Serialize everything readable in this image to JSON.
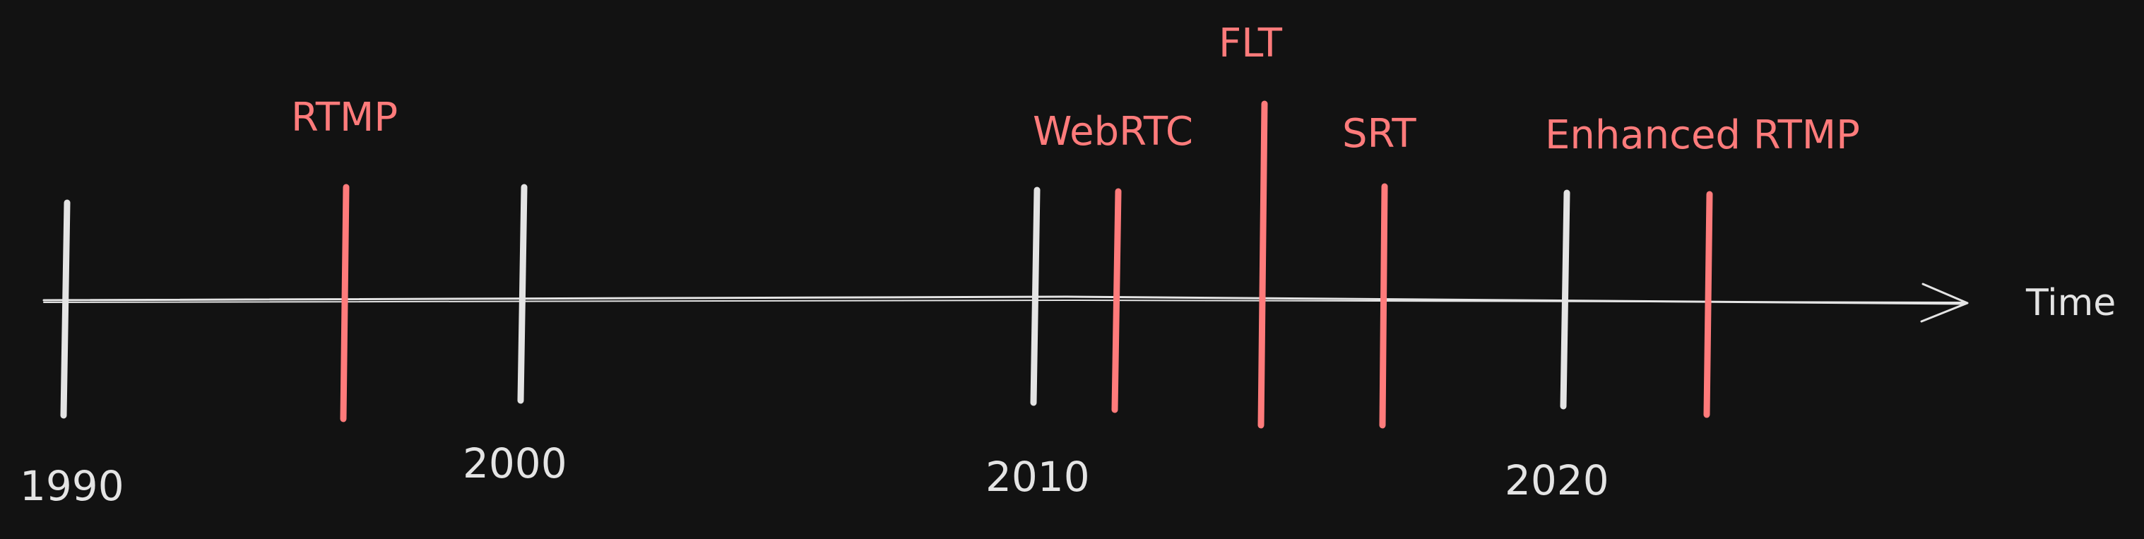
{
  "timeline": {
    "axis_label": "Time",
    "colors": {
      "background": "#121212",
      "year_marker": "#e4e4e4",
      "event_marker": "#ff7b7b",
      "axis": "#e4e4e4"
    },
    "range": [
      1990,
      2025
    ],
    "years": [
      {
        "label": "1990",
        "year": 1990
      },
      {
        "label": "2000",
        "year": 2000
      },
      {
        "label": "2010",
        "year": 2010
      },
      {
        "label": "2020",
        "year": 2020
      }
    ],
    "events": [
      {
        "label": "RTMP",
        "year": 1996
      },
      {
        "label": "WebRTC",
        "year": 2011
      },
      {
        "label": "FLT",
        "year": 2014
      },
      {
        "label": "SRT",
        "year": 2017
      },
      {
        "label": "Enhanced RTMP",
        "year": 2023
      }
    ]
  }
}
